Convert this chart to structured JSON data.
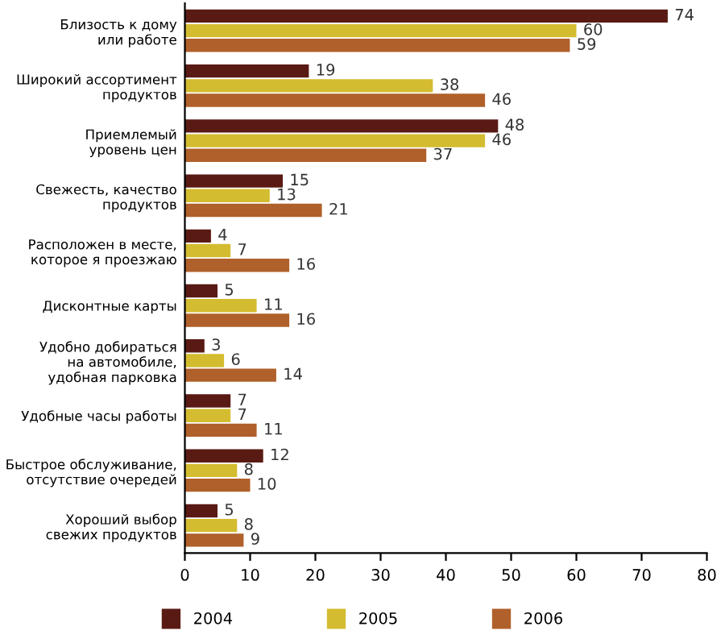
{
  "chart_data": {
    "type": "bar",
    "orientation": "horizontal",
    "categories": [
      "Близость к дому\nили работе",
      "Широкий ассортимент\nпродуктов",
      "Приемлемый\nуровень цен",
      "Свежесть, качество\nпродуктов",
      "Расположен в месте,\nкоторое я проезжаю",
      "Дисконтные карты",
      "Удобно добираться\nна автомобиле,\nудобная парковка",
      "Удобные часы работы",
      "Быстрое обслуживание,\nотсутствие очередей",
      "Хороший выбор\nсвежих продуктов"
    ],
    "series": [
      {
        "name": "2004",
        "color": "#5a1a14",
        "values": [
          74,
          19,
          48,
          15,
          4,
          5,
          3,
          7,
          12,
          5
        ]
      },
      {
        "name": "2005",
        "color": "#d4bc30",
        "values": [
          60,
          38,
          46,
          13,
          7,
          11,
          6,
          7,
          8,
          8
        ]
      },
      {
        "name": "2006",
        "color": "#b0602a",
        "values": [
          59,
          46,
          37,
          21,
          16,
          16,
          14,
          11,
          10,
          9
        ]
      }
    ],
    "xlim": [
      0,
      80
    ],
    "xticks": [
      0,
      10,
      20,
      30,
      40,
      50,
      60,
      70,
      80
    ],
    "data_labels": true,
    "legend": "bottom",
    "grid": false
  }
}
